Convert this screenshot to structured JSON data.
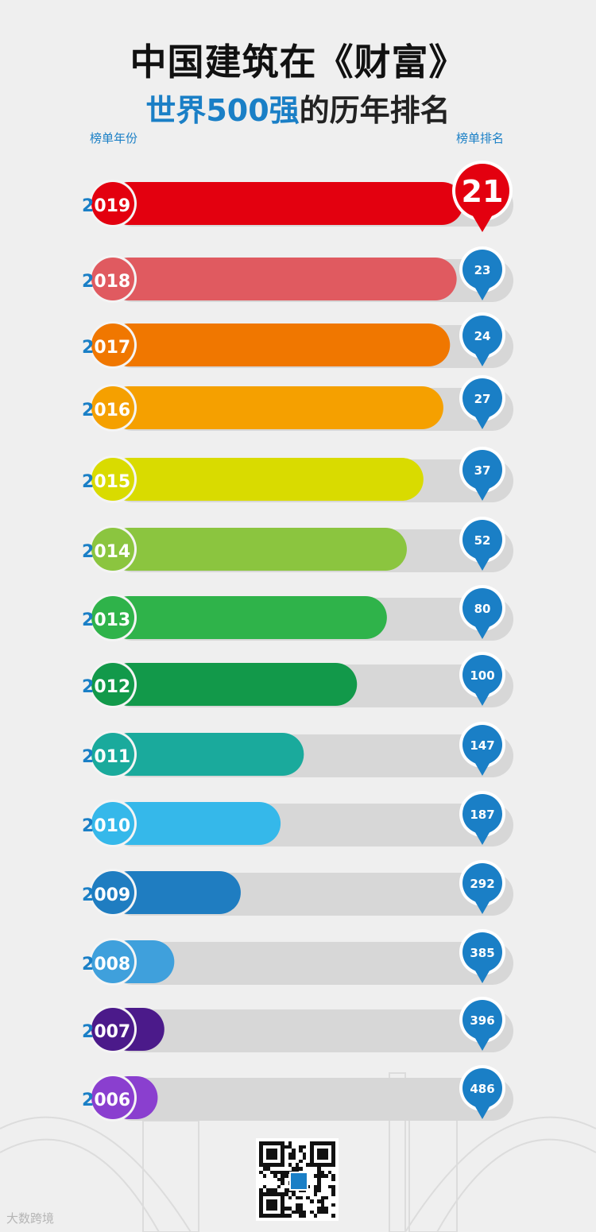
{
  "title": {
    "line1": "中国建筑在《财富》",
    "line2_highlight": "世界500强",
    "line2_rest": "的历年排名"
  },
  "headers": {
    "left": "榜单年份",
    "right": "榜单排名"
  },
  "chart_data": {
    "type": "bar",
    "orientation": "horizontal",
    "categories": [
      "2019",
      "2018",
      "2017",
      "2016",
      "2015",
      "2014",
      "2013",
      "2012",
      "2011",
      "2010",
      "2009",
      "2008",
      "2007",
      "2006"
    ],
    "values": [
      21,
      23,
      24,
      27,
      37,
      52,
      80,
      100,
      147,
      187,
      292,
      385,
      396,
      486
    ],
    "colors": [
      "#e3000f",
      "#e05a60",
      "#f07700",
      "#f5a000",
      "#d9db00",
      "#8bc53f",
      "#2fb34a",
      "#12994a",
      "#1aaa9c",
      "#35b8ea",
      "#1f7dc1",
      "#3fa0dc",
      "#4b1a8a",
      "#8a3fcf"
    ],
    "bar_lengths_note": "bar fill shows relative improvement; 2019 full",
    "fill_fraction": [
      1.0,
      0.98,
      0.96,
      0.94,
      0.88,
      0.83,
      0.77,
      0.68,
      0.52,
      0.45,
      0.33,
      0.13,
      0.1,
      0.08
    ]
  },
  "watermark": "大数跨境"
}
